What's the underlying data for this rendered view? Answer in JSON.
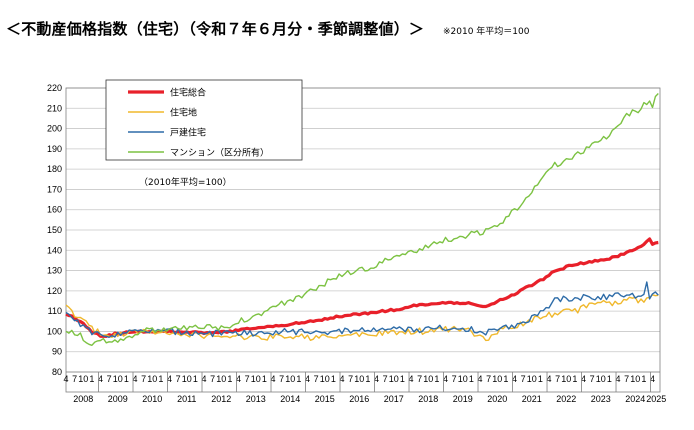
{
  "header": {
    "title": "＜不動産価格指数（住宅）（令和７年６月分・季節調整値）＞",
    "note": "※2010 年平均＝100"
  },
  "chart_data": {
    "type": "line",
    "annotation": "（2010年平均=100）",
    "ylim": [
      80,
      220
    ],
    "y_ticks": [
      80,
      90,
      100,
      110,
      120,
      130,
      140,
      150,
      160,
      170,
      180,
      190,
      200,
      210,
      220
    ],
    "years": [
      "2008",
      "2009",
      "2010",
      "2011",
      "2012",
      "2013",
      "2014",
      "2015",
      "2016",
      "2017",
      "2018",
      "2019",
      "2020",
      "2021",
      "2022",
      "2023",
      "2024",
      "2025"
    ],
    "quarter_tick_labels": [
      "4",
      "7",
      "10",
      "1"
    ],
    "last_year_tick_labels": [
      "4"
    ],
    "x_start": "2008-04",
    "x_end": "2025-06",
    "grid": true,
    "legend_position": "top-left",
    "series": [
      {
        "name": "住宅総合",
        "color": "#e8202a",
        "keypoints": [
          [
            "2008-04",
            109
          ],
          [
            "2008-10",
            104
          ],
          [
            "2009-01",
            100
          ],
          [
            "2009-04",
            98
          ],
          [
            "2009-07",
            98
          ],
          [
            "2009-10",
            99
          ],
          [
            "2010-06",
            100
          ],
          [
            "2011-06",
            100
          ],
          [
            "2012-06",
            99
          ],
          [
            "2013-01",
            100
          ],
          [
            "2013-06",
            101
          ],
          [
            "2014-01",
            102
          ],
          [
            "2014-06",
            103
          ],
          [
            "2015-01",
            104
          ],
          [
            "2015-06",
            105
          ],
          [
            "2016-01",
            107
          ],
          [
            "2016-06",
            108
          ],
          [
            "2017-01",
            109
          ],
          [
            "2017-06",
            110
          ],
          [
            "2018-01",
            111
          ],
          [
            "2018-06",
            113
          ],
          [
            "2019-01",
            114
          ],
          [
            "2019-06",
            114
          ],
          [
            "2020-01",
            114
          ],
          [
            "2020-06",
            112
          ],
          [
            "2020-10",
            115
          ],
          [
            "2021-01",
            116
          ],
          [
            "2021-06",
            120
          ],
          [
            "2022-01",
            125
          ],
          [
            "2022-06",
            130
          ],
          [
            "2023-01",
            133
          ],
          [
            "2023-06",
            134
          ],
          [
            "2024-01",
            136
          ],
          [
            "2024-06",
            138
          ],
          [
            "2024-12",
            142
          ],
          [
            "2025-03",
            146
          ],
          [
            "2025-04",
            143
          ],
          [
            "2025-06",
            144
          ]
        ]
      },
      {
        "name": "住宅地",
        "color": "#f0b82c",
        "keypoints": [
          [
            "2008-04",
            112
          ],
          [
            "2008-10",
            105
          ],
          [
            "2009-01",
            101
          ],
          [
            "2009-04",
            99
          ],
          [
            "2009-10",
            98
          ],
          [
            "2010-06",
            100
          ],
          [
            "2011-06",
            99
          ],
          [
            "2012-06",
            98
          ],
          [
            "2013-06",
            97
          ],
          [
            "2014-01",
            97
          ],
          [
            "2014-06",
            98
          ],
          [
            "2015-06",
            97
          ],
          [
            "2016-01",
            97
          ],
          [
            "2016-06",
            98
          ],
          [
            "2017-06",
            99
          ],
          [
            "2018-06",
            100
          ],
          [
            "2019-06",
            101
          ],
          [
            "2020-01",
            100
          ],
          [
            "2020-06",
            96
          ],
          [
            "2020-10",
            100
          ],
          [
            "2021-06",
            103
          ],
          [
            "2022-01",
            107
          ],
          [
            "2022-06",
            109
          ],
          [
            "2023-01",
            110
          ],
          [
            "2023-06",
            113
          ],
          [
            "2024-01",
            114
          ],
          [
            "2024-06",
            115
          ],
          [
            "2025-01",
            116
          ],
          [
            "2025-06",
            119
          ]
        ]
      },
      {
        "name": "戸建住宅",
        "color": "#2e6ca8",
        "keypoints": [
          [
            "2008-04",
            109
          ],
          [
            "2008-10",
            103
          ],
          [
            "2009-01",
            99
          ],
          [
            "2009-06",
            98
          ],
          [
            "2009-10",
            99
          ],
          [
            "2010-06",
            100
          ],
          [
            "2011-06",
            100
          ],
          [
            "2012-06",
            99
          ],
          [
            "2013-06",
            99
          ],
          [
            "2014-06",
            100
          ],
          [
            "2015-06",
            100
          ],
          [
            "2016-06",
            100
          ],
          [
            "2017-06",
            101
          ],
          [
            "2018-06",
            101
          ],
          [
            "2019-06",
            102
          ],
          [
            "2020-01",
            101
          ],
          [
            "2020-06",
            99
          ],
          [
            "2020-10",
            101
          ],
          [
            "2021-06",
            104
          ],
          [
            "2022-01",
            109
          ],
          [
            "2022-06",
            115
          ],
          [
            "2023-01",
            117
          ],
          [
            "2023-06",
            117
          ],
          [
            "2024-01",
            117
          ],
          [
            "2024-06",
            118
          ],
          [
            "2025-01",
            118
          ],
          [
            "2025-02",
            124
          ],
          [
            "2025-03",
            117
          ],
          [
            "2025-06",
            119
          ]
        ]
      },
      {
        "name": "マンション（区分所有）",
        "color": "#7cc242",
        "keypoints": [
          [
            "2008-04",
            101
          ],
          [
            "2008-10",
            97
          ],
          [
            "2009-01",
            94
          ],
          [
            "2009-04",
            95
          ],
          [
            "2009-10",
            96
          ],
          [
            "2010-06",
            100
          ],
          [
            "2011-06",
            101
          ],
          [
            "2012-06",
            102
          ],
          [
            "2013-01",
            102
          ],
          [
            "2013-06",
            106
          ],
          [
            "2014-01",
            110
          ],
          [
            "2014-06",
            113
          ],
          [
            "2015-01",
            117
          ],
          [
            "2015-06",
            121
          ],
          [
            "2016-01",
            126
          ],
          [
            "2016-06",
            129
          ],
          [
            "2017-01",
            131
          ],
          [
            "2017-06",
            134
          ],
          [
            "2018-01",
            137
          ],
          [
            "2018-06",
            140
          ],
          [
            "2019-01",
            144
          ],
          [
            "2019-06",
            146
          ],
          [
            "2020-01",
            148
          ],
          [
            "2020-06",
            149
          ],
          [
            "2021-01",
            155
          ],
          [
            "2021-06",
            163
          ],
          [
            "2022-01",
            175
          ],
          [
            "2022-06",
            182
          ],
          [
            "2023-01",
            187
          ],
          [
            "2023-06",
            191
          ],
          [
            "2024-01",
            196
          ],
          [
            "2024-06",
            206
          ],
          [
            "2024-12",
            210
          ],
          [
            "2025-03",
            215
          ],
          [
            "2025-04",
            212
          ],
          [
            "2025-06",
            217
          ]
        ]
      }
    ]
  }
}
